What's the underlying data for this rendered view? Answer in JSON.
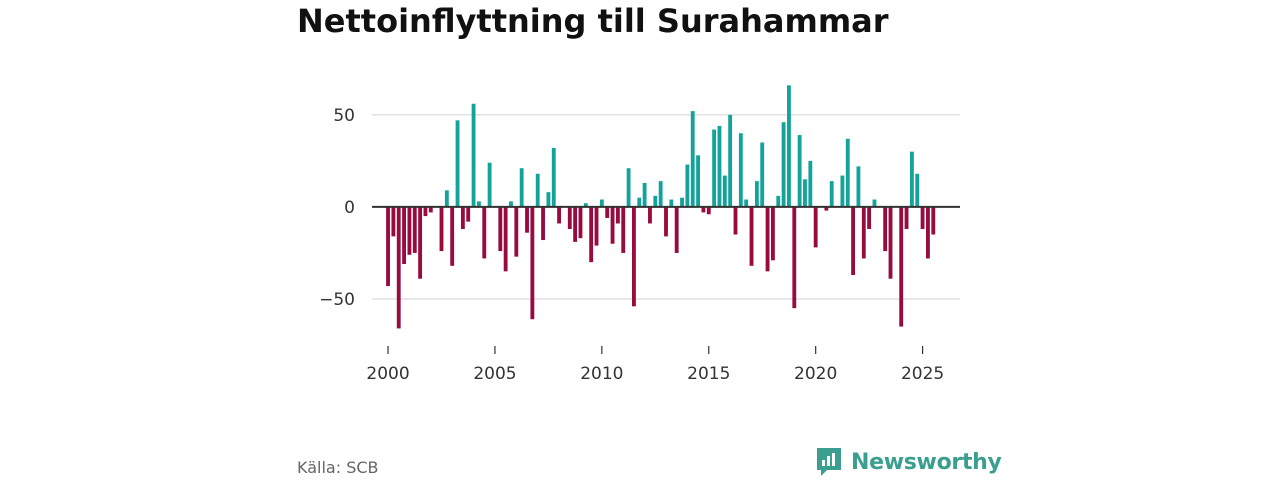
{
  "title": "Nettoinflyttning till Surahammar",
  "source": "Källa: SCB",
  "brand": {
    "name": "Newsworthy",
    "icon": "newsworthy-logo-icon",
    "color": "#3a9f8e"
  },
  "colors": {
    "positive": "#13a39b",
    "negative": "#970b3f",
    "grid": "#d9d9d9",
    "zero_line": "#333333"
  },
  "chart_data": {
    "type": "bar",
    "title": "Nettoinflyttning till Surahammar",
    "xlabel": "",
    "ylabel": "",
    "ylim": [
      -75,
      70
    ],
    "xlim": [
      1999.25,
      2026.75
    ],
    "yticks": [
      {
        "value": -50,
        "label": "−50"
      },
      {
        "value": 0,
        "label": "0"
      },
      {
        "value": 50,
        "label": "50"
      }
    ],
    "xticks": [
      {
        "value": 2000,
        "label": "2000"
      },
      {
        "value": 2005,
        "label": "2005"
      },
      {
        "value": 2010,
        "label": "2010"
      },
      {
        "value": 2015,
        "label": "2015"
      },
      {
        "value": 2020,
        "label": "2020"
      },
      {
        "value": 2025,
        "label": "2025"
      }
    ],
    "x_unit": "quarter",
    "start": 2000.0,
    "step": 0.25,
    "values": [
      -43,
      -16,
      -66,
      -31,
      -26,
      -25,
      -39,
      -5,
      -3,
      0,
      -24,
      9,
      -32,
      47,
      -12,
      -8,
      56,
      3,
      -28,
      24,
      0,
      -24,
      -35,
      3,
      -27,
      21,
      -14,
      -61,
      18,
      -18,
      8,
      32,
      -9,
      0,
      -12,
      -19,
      -17,
      2,
      -30,
      -21,
      4,
      -6,
      -20,
      -9,
      -25,
      21,
      -54,
      5,
      13,
      -9,
      6,
      14,
      -16,
      4,
      -25,
      5,
      23,
      52,
      28,
      -3,
      -4,
      42,
      44,
      17,
      50,
      -15,
      40,
      4,
      -32,
      14,
      35,
      -35,
      -29,
      6,
      46,
      66,
      -55,
      39,
      15,
      25,
      -22,
      0,
      -2,
      14,
      0,
      17,
      37,
      -37,
      22,
      -28,
      -12,
      4,
      0,
      -24,
      -39,
      0,
      -65,
      -12,
      30,
      18,
      -12,
      -28,
      -15
    ]
  }
}
